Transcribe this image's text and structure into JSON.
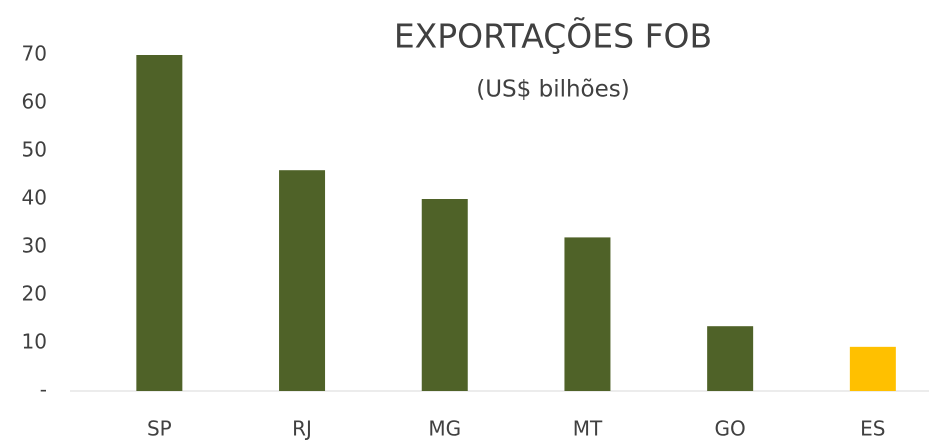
{
  "chart_data": {
    "type": "bar",
    "title": "EXPORTAÇÕES FOB",
    "subtitle": "(US$ bilhões)",
    "categories": [
      "SP",
      "RJ",
      "MG",
      "MT",
      "GO",
      "ES"
    ],
    "values": [
      70,
      46,
      40,
      32,
      13.5,
      9.2
    ],
    "colors": [
      "#4f6228",
      "#4f6228",
      "#4f6228",
      "#4f6228",
      "#4f6228",
      "#ffc000"
    ],
    "ylim": [
      0,
      70
    ],
    "yticks": [
      {
        "value": 0,
        "label": "-"
      },
      10,
      20,
      30,
      40,
      50,
      60,
      70
    ],
    "grid": false
  }
}
